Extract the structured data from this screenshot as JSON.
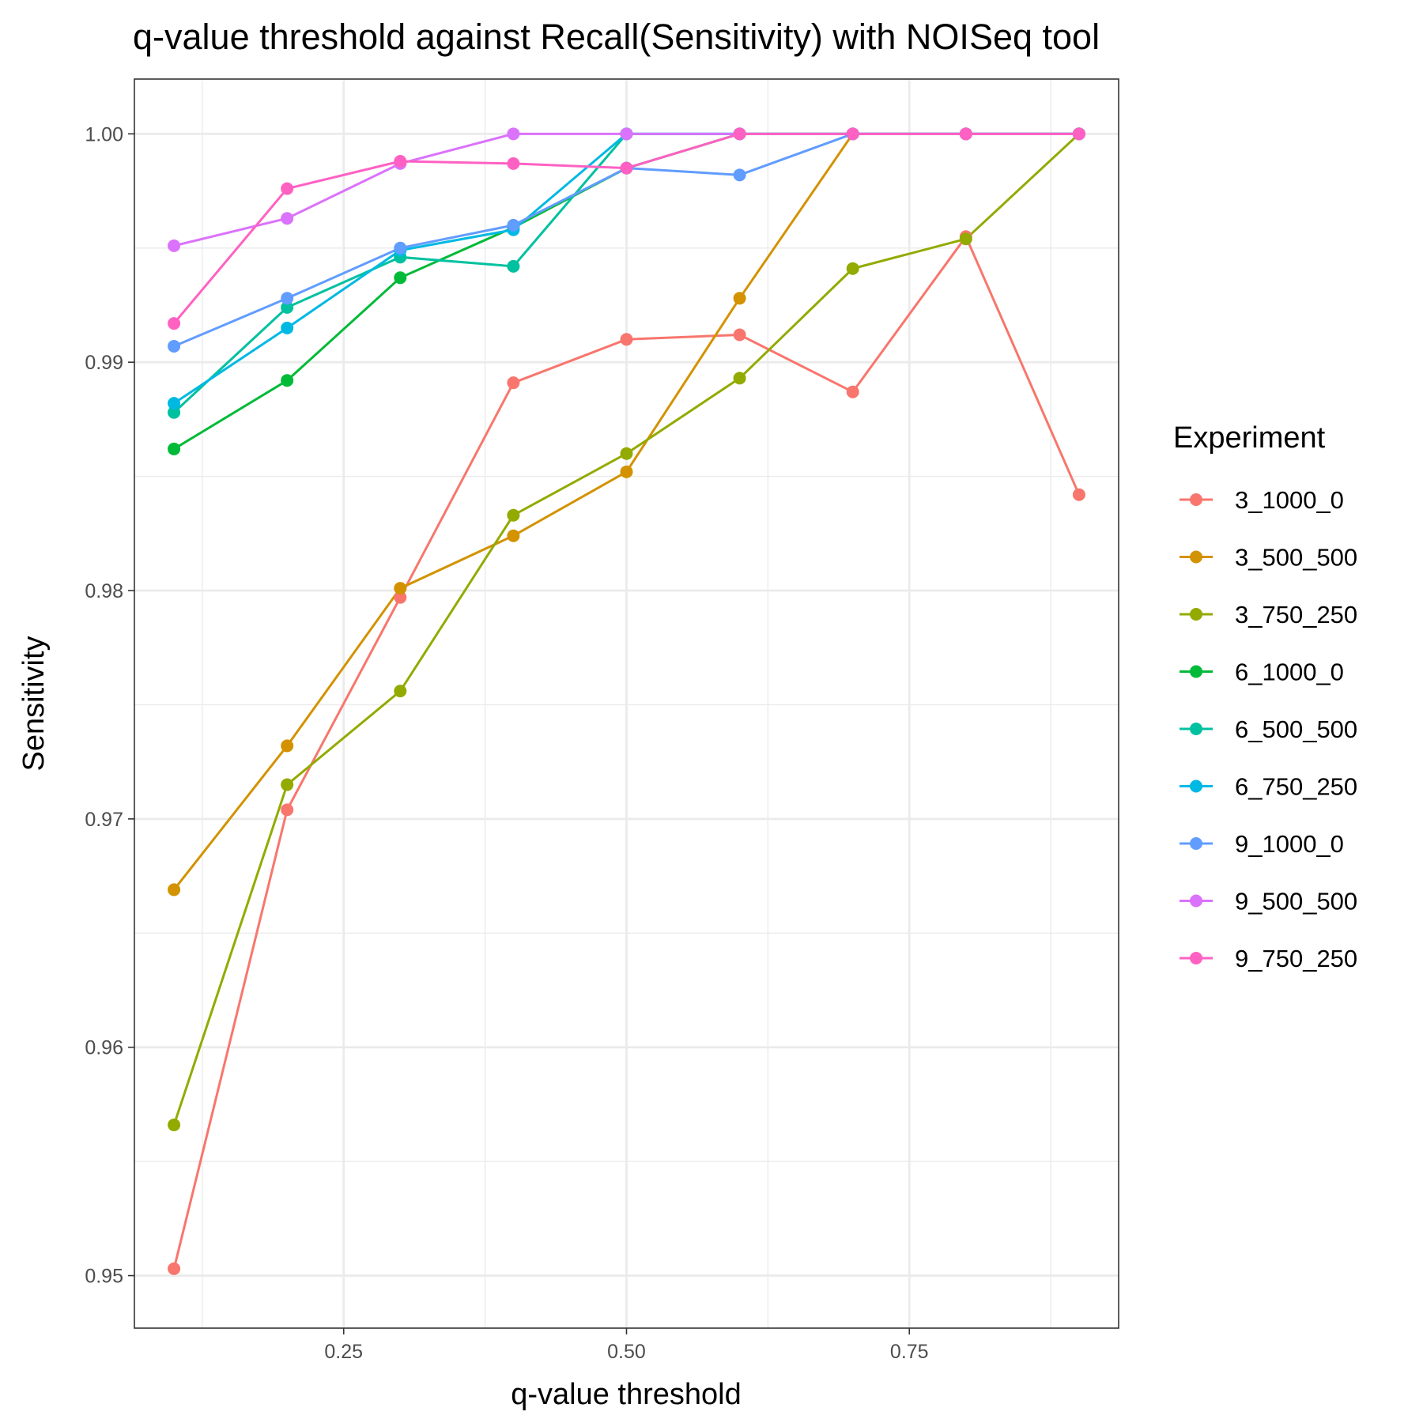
{
  "chart_data": {
    "type": "line",
    "title": "q-value threshold against Recall(Sensitivity) with NOISeq tool",
    "xlabel": "q-value threshold",
    "ylabel": "Sensitivity",
    "xlim": [
      0.065,
      0.935
    ],
    "ylim": [
      0.9477,
      1.0024
    ],
    "x_ticks": [
      0.25,
      0.5,
      0.75
    ],
    "x_tick_labels": [
      "0.25",
      "0.50",
      "0.75"
    ],
    "y_ticks": [
      0.95,
      0.96,
      0.97,
      0.98,
      0.99,
      1.0
    ],
    "y_tick_labels": [
      "0.95",
      "0.96",
      "0.97",
      "0.98",
      "0.99",
      "1.00"
    ],
    "grid": true,
    "legend_title": "Experiment",
    "legend_position": "right",
    "x": [
      0.1,
      0.2,
      0.3,
      0.4,
      0.5,
      0.6,
      0.7,
      0.8,
      0.9
    ],
    "series": [
      {
        "name": "3_1000_0",
        "color": "#F8766D",
        "values": [
          0.9503,
          0.9704,
          0.9797,
          0.9891,
          0.991,
          0.9912,
          0.9887,
          0.9955,
          0.9842
        ]
      },
      {
        "name": "3_500_500",
        "color": "#D39200",
        "values": [
          0.9669,
          0.9732,
          0.9801,
          0.9824,
          0.9852,
          0.9928,
          1.0,
          1.0,
          1.0
        ]
      },
      {
        "name": "3_750_250",
        "color": "#93AA00",
        "values": [
          0.9566,
          0.9715,
          0.9756,
          0.9833,
          0.986,
          0.9893,
          0.9941,
          0.9954,
          1.0
        ]
      },
      {
        "name": "6_1000_0",
        "color": "#00BA38",
        "values": [
          0.9862,
          0.9892,
          0.9937,
          0.9959,
          0.9985,
          1.0,
          1.0,
          1.0,
          1.0
        ]
      },
      {
        "name": "6_500_500",
        "color": "#00C19F",
        "values": [
          0.9878,
          0.9924,
          0.9946,
          0.9942,
          1.0,
          1.0,
          1.0,
          1.0,
          1.0
        ]
      },
      {
        "name": "6_750_250",
        "color": "#00B9E3",
        "values": [
          0.9882,
          0.9915,
          0.9949,
          0.9958,
          1.0,
          1.0,
          1.0,
          1.0,
          1.0
        ]
      },
      {
        "name": "9_1000_0",
        "color": "#619CFF",
        "values": [
          0.9907,
          0.9928,
          0.995,
          0.996,
          0.9985,
          0.9982,
          1.0,
          1.0,
          1.0
        ]
      },
      {
        "name": "9_500_500",
        "color": "#DB72FB",
        "values": [
          0.9951,
          0.9963,
          0.9987,
          1.0,
          1.0,
          1.0,
          1.0,
          1.0,
          1.0
        ]
      },
      {
        "name": "9_750_250",
        "color": "#FF61C3",
        "values": [
          0.9917,
          0.9976,
          0.9988,
          0.9987,
          0.9985,
          1.0,
          1.0,
          1.0,
          1.0
        ]
      }
    ]
  }
}
